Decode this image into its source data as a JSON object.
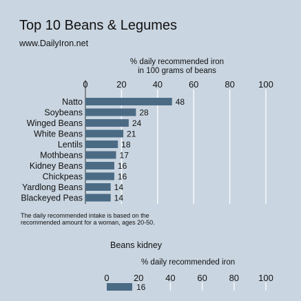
{
  "title": "Top 10 Beans & Legumes",
  "subtitle": "www.DailyIron.net",
  "footnote": [
    "The daily recommended intake is based on the",
    "recommended amount for a woman, ages 20-50."
  ],
  "colors": {
    "background": "#c9d5e0",
    "bar": "#4b6b85",
    "grid": "#ffffff"
  },
  "chart_data": [
    {
      "type": "bar",
      "orientation": "horizontal",
      "title": "",
      "xlabel": "% daily recommended iron\nin 100 grams of beans",
      "xlim": [
        0,
        100
      ],
      "xticks": [
        0,
        20,
        40,
        60,
        80,
        100
      ],
      "grid": true,
      "data_labels": true,
      "categories": [
        "Natto",
        "Soybeans",
        "Winged Beans",
        "White Beans",
        "Lentils",
        "Mothbeans",
        "Kidney Beans",
        "Chickpeas",
        "Yardlong Beans",
        "Blackeyed Peas"
      ],
      "values": [
        48,
        28,
        24,
        21,
        18,
        17,
        16,
        16,
        14,
        14
      ]
    },
    {
      "type": "bar",
      "orientation": "horizontal",
      "title": "Beans kidney",
      "xlabel": "% daily recommended iron",
      "xlim": [
        0,
        100
      ],
      "xticks": [
        0,
        20,
        40,
        60,
        80,
        100
      ],
      "grid": true,
      "data_labels": true,
      "categories": [
        ""
      ],
      "values": [
        16
      ]
    }
  ]
}
